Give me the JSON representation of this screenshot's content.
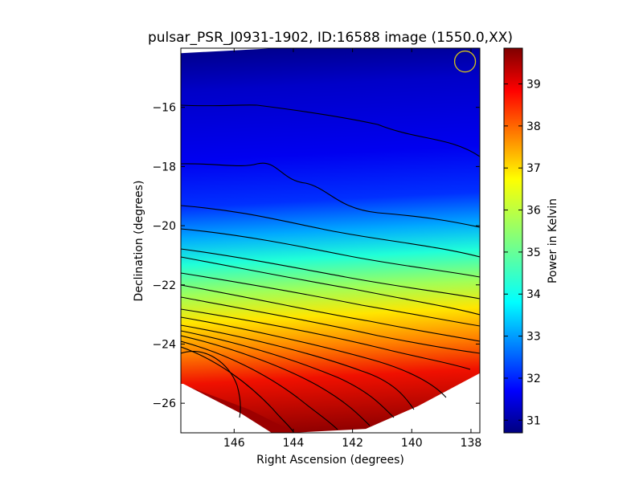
{
  "chart_data": {
    "type": "heatmap",
    "title": "pulsar_PSR_J0931-1902, ID:16588 image (1550.0,XX)",
    "xlabel": "Right Ascension (degrees)",
    "ylabel": "Declination (degrees)",
    "colorbar_label": "Power in Kelvin",
    "xlim": [
      147.8,
      137.7
    ],
    "ylim": [
      -27.0,
      -14.0
    ],
    "x_ticks": [
      {
        "value": 146,
        "label": "146"
      },
      {
        "value": 144,
        "label": "144"
      },
      {
        "value": 142,
        "label": "142"
      },
      {
        "value": 140,
        "label": "140"
      },
      {
        "value": 138,
        "label": "138"
      }
    ],
    "y_ticks": [
      {
        "value": -16,
        "label": "−16"
      },
      {
        "value": -18,
        "label": "−18"
      },
      {
        "value": -20,
        "label": "−20"
      },
      {
        "value": -22,
        "label": "−22"
      },
      {
        "value": -24,
        "label": "−24"
      },
      {
        "value": -26,
        "label": "−26"
      }
    ],
    "colorbar_range": [
      30.7,
      39.85
    ],
    "colorbar_ticks": [
      {
        "value": 31,
        "label": "31"
      },
      {
        "value": 32,
        "label": "32"
      },
      {
        "value": 33,
        "label": "33"
      },
      {
        "value": 34,
        "label": "34"
      },
      {
        "value": 35,
        "label": "35"
      },
      {
        "value": 36,
        "label": "36"
      },
      {
        "value": 37,
        "label": "37"
      },
      {
        "value": 38,
        "label": "38"
      },
      {
        "value": 39,
        "label": "39"
      }
    ],
    "colormap": "jet",
    "grid": false,
    "beam_marker": {
      "ra": 138.2,
      "dec": -14.45,
      "color": "#d4c21a"
    },
    "contour_color": "#000000"
  }
}
